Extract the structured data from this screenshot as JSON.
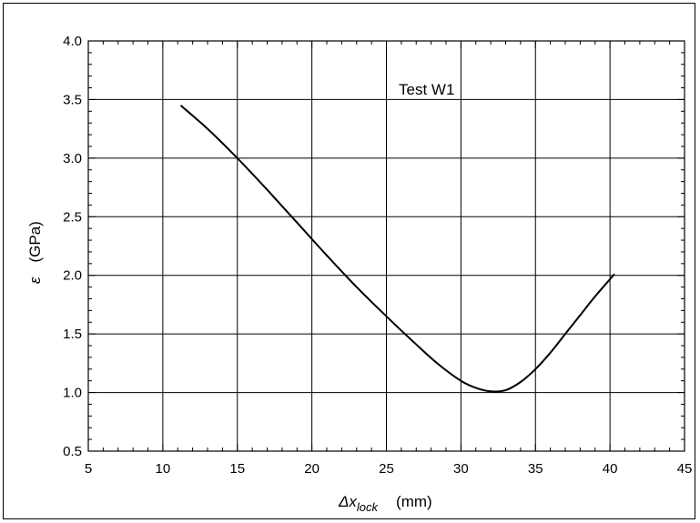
{
  "chart_data": {
    "type": "line",
    "annotation": "Test W1",
    "xlabel": {
      "symbol": "Δx",
      "subscript": "lock",
      "unit": "(mm)"
    },
    "ylabel": {
      "symbol": "ε",
      "unit": "(GPa)"
    },
    "xlim": [
      5,
      45
    ],
    "ylim": [
      0.5,
      4.0
    ],
    "x_ticks": [
      5,
      10,
      15,
      20,
      25,
      30,
      35,
      40,
      45
    ],
    "y_ticks": [
      0.5,
      1.0,
      1.5,
      2.0,
      2.5,
      3.0,
      3.5,
      4.0
    ],
    "x_tick_labels": [
      "5",
      "10",
      "15",
      "20",
      "25",
      "30",
      "35",
      "40",
      "45"
    ],
    "y_tick_labels": [
      "0.5",
      "1.0",
      "1.5",
      "2.0",
      "2.5",
      "3.0",
      "3.5",
      "4.0"
    ],
    "grid": true,
    "series": [
      {
        "x": [
          11.2,
          13,
          15,
          17,
          19,
          21,
          23,
          25,
          27,
          28.5,
          30,
          31,
          32,
          33,
          34,
          35,
          36,
          37,
          38,
          39,
          40.3
        ],
        "y": [
          3.45,
          3.25,
          3.0,
          2.73,
          2.45,
          2.17,
          1.9,
          1.65,
          1.41,
          1.24,
          1.1,
          1.04,
          1.01,
          1.02,
          1.09,
          1.2,
          1.34,
          1.5,
          1.66,
          1.82,
          2.01
        ]
      }
    ]
  }
}
